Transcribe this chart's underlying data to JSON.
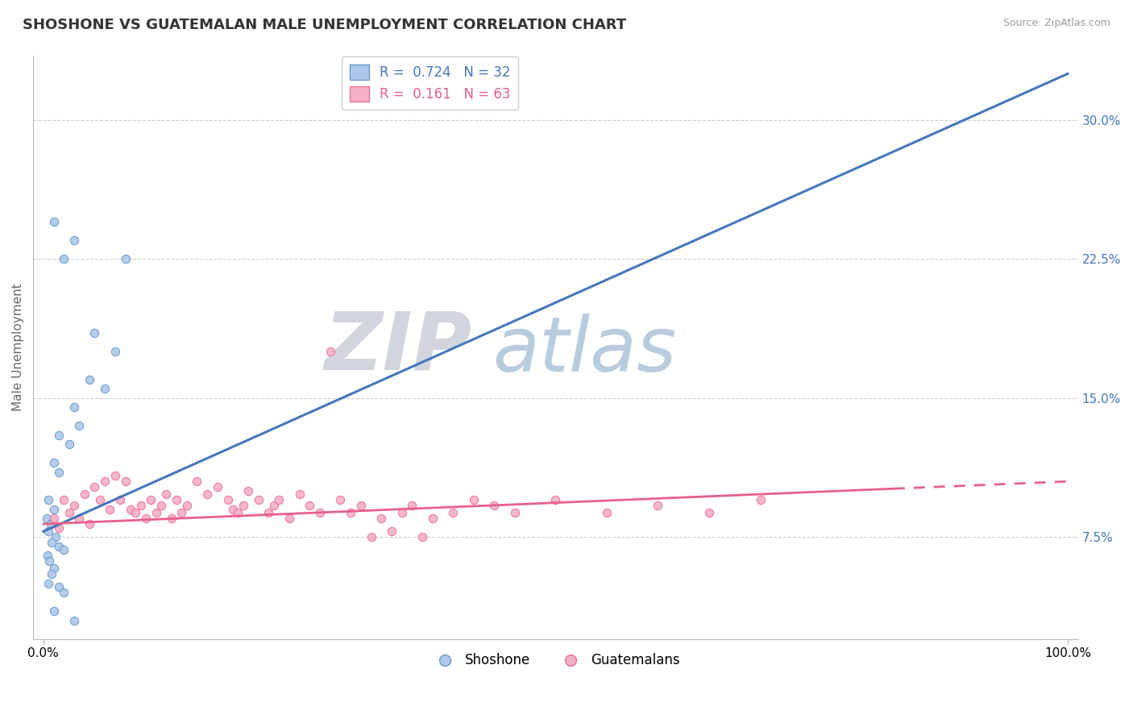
{
  "title": "SHOSHONE VS GUATEMALAN MALE UNEMPLOYMENT CORRELATION CHART",
  "source_text": "Source: ZipAtlas.com",
  "ylabel": "Male Unemployment",
  "watermark_zip": "ZIP",
  "watermark_atlas": "atlas",
  "legend_line1": "R =  0.724   N = 32",
  "legend_line2": "R =  0.161   N = 63",
  "legend_labels": [
    "Shoshone",
    "Guatemalans"
  ],
  "shoshone_scatter": [
    [
      1.0,
      24.5
    ],
    [
      3.0,
      23.5
    ],
    [
      2.0,
      22.5
    ],
    [
      8.0,
      22.5
    ],
    [
      5.0,
      18.5
    ],
    [
      7.0,
      17.5
    ],
    [
      4.5,
      16.0
    ],
    [
      6.0,
      15.5
    ],
    [
      3.0,
      14.5
    ],
    [
      3.5,
      13.5
    ],
    [
      1.5,
      13.0
    ],
    [
      2.5,
      12.5
    ],
    [
      1.0,
      11.5
    ],
    [
      1.5,
      11.0
    ],
    [
      0.5,
      9.5
    ],
    [
      1.0,
      9.0
    ],
    [
      0.3,
      8.5
    ],
    [
      0.7,
      8.2
    ],
    [
      0.5,
      7.8
    ],
    [
      1.2,
      7.5
    ],
    [
      0.8,
      7.2
    ],
    [
      1.5,
      7.0
    ],
    [
      2.0,
      6.8
    ],
    [
      0.4,
      6.5
    ],
    [
      0.6,
      6.2
    ],
    [
      1.0,
      5.8
    ],
    [
      0.8,
      5.5
    ],
    [
      0.5,
      5.0
    ],
    [
      1.5,
      4.8
    ],
    [
      2.0,
      4.5
    ],
    [
      1.0,
      3.5
    ],
    [
      3.0,
      3.0
    ]
  ],
  "guatemalan_scatter": [
    [
      1.0,
      8.5
    ],
    [
      1.5,
      8.0
    ],
    [
      2.0,
      9.5
    ],
    [
      2.5,
      8.8
    ],
    [
      3.0,
      9.2
    ],
    [
      3.5,
      8.5
    ],
    [
      4.0,
      9.8
    ],
    [
      4.5,
      8.2
    ],
    [
      5.0,
      10.2
    ],
    [
      5.5,
      9.5
    ],
    [
      6.0,
      10.5
    ],
    [
      6.5,
      9.0
    ],
    [
      7.0,
      10.8
    ],
    [
      7.5,
      9.5
    ],
    [
      8.0,
      10.5
    ],
    [
      8.5,
      9.0
    ],
    [
      9.0,
      8.8
    ],
    [
      9.5,
      9.2
    ],
    [
      10.0,
      8.5
    ],
    [
      10.5,
      9.5
    ],
    [
      11.0,
      8.8
    ],
    [
      11.5,
      9.2
    ],
    [
      12.0,
      9.8
    ],
    [
      12.5,
      8.5
    ],
    [
      13.0,
      9.5
    ],
    [
      13.5,
      8.8
    ],
    [
      14.0,
      9.2
    ],
    [
      15.0,
      10.5
    ],
    [
      16.0,
      9.8
    ],
    [
      17.0,
      10.2
    ],
    [
      18.0,
      9.5
    ],
    [
      18.5,
      9.0
    ],
    [
      19.0,
      8.8
    ],
    [
      19.5,
      9.2
    ],
    [
      20.0,
      10.0
    ],
    [
      21.0,
      9.5
    ],
    [
      22.0,
      8.8
    ],
    [
      22.5,
      9.2
    ],
    [
      23.0,
      9.5
    ],
    [
      24.0,
      8.5
    ],
    [
      25.0,
      9.8
    ],
    [
      26.0,
      9.2
    ],
    [
      27.0,
      8.8
    ],
    [
      28.0,
      17.5
    ],
    [
      29.0,
      9.5
    ],
    [
      30.0,
      8.8
    ],
    [
      31.0,
      9.2
    ],
    [
      32.0,
      7.5
    ],
    [
      33.0,
      8.5
    ],
    [
      34.0,
      7.8
    ],
    [
      35.0,
      8.8
    ],
    [
      36.0,
      9.2
    ],
    [
      37.0,
      7.5
    ],
    [
      38.0,
      8.5
    ],
    [
      40.0,
      8.8
    ],
    [
      42.0,
      9.5
    ],
    [
      44.0,
      9.2
    ],
    [
      46.0,
      8.8
    ],
    [
      50.0,
      9.5
    ],
    [
      55.0,
      8.8
    ],
    [
      60.0,
      9.2
    ],
    [
      65.0,
      8.8
    ],
    [
      70.0,
      9.5
    ]
  ],
  "shoshone_line": {
    "x0": 0.0,
    "y0": 7.8,
    "x1": 100.0,
    "y1": 32.5
  },
  "guatemalan_line": {
    "x0": 0.0,
    "y0": 8.2,
    "x1": 100.0,
    "y1": 10.5
  },
  "guatemalan_dash_start": 83,
  "xlim": [
    -1,
    101
  ],
  "ylim": [
    2.0,
    33.5
  ],
  "plot_ylim": [
    2.0,
    33.5
  ],
  "xticks": [
    0,
    100
  ],
  "xticklabels": [
    "0.0%",
    "100.0%"
  ],
  "yticks_right": [
    7.5,
    15.0,
    22.5,
    30.0
  ],
  "yticklabels_right": [
    "7.5%",
    "15.0%",
    "22.5%",
    "30.0%"
  ],
  "grid_lines": [
    7.5,
    15.0,
    22.5,
    30.0
  ],
  "shoshone_color": "#adc8e8",
  "guatemalan_color": "#f5b0c8",
  "shoshone_edge_color": "#6699cc",
  "guatemalan_edge_color": "#e87098",
  "shoshone_line_color": "#4477bb",
  "guatemalan_line_color": "#e86088",
  "background_color": "#ffffff",
  "grid_color": "#cccccc",
  "title_fontsize": 13,
  "axis_fontsize": 11,
  "scatter_size": 55,
  "watermark_zip_color": "#d0d5de",
  "watermark_atlas_color": "#b8ccde",
  "watermark_fontsize_zip": 72,
  "watermark_fontsize_atlas": 68
}
